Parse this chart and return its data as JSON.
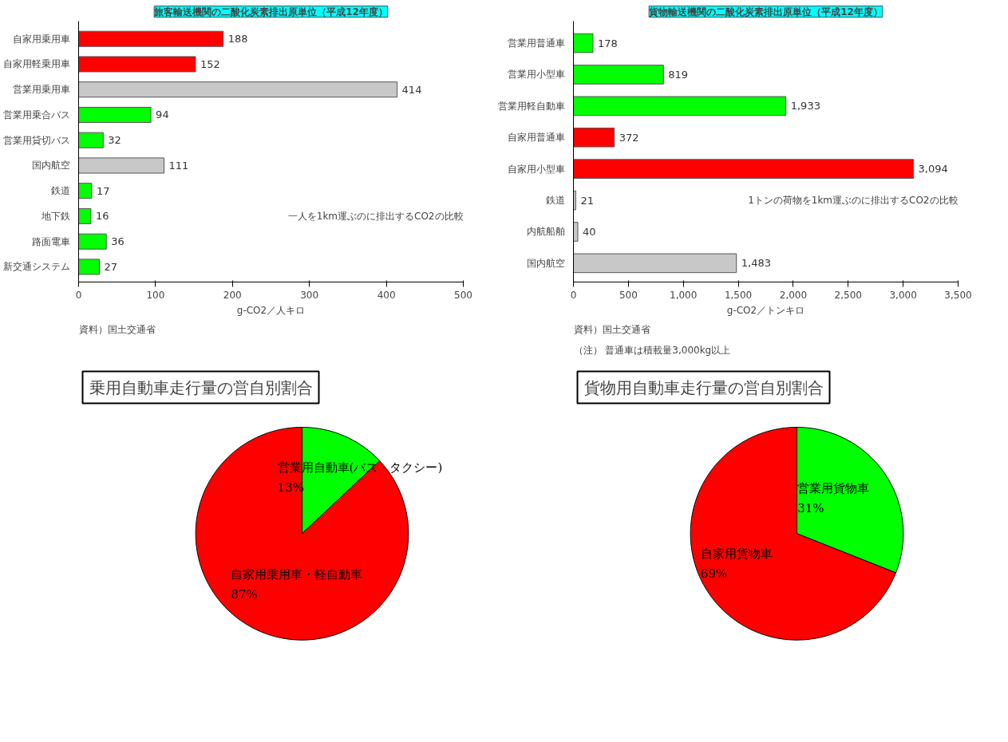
{
  "chart_data": [
    {
      "type": "bar",
      "orientation": "horizontal",
      "title": "旅客輸送機関の二酸化炭素排出原単位（平成12年度）",
      "xlabel": "g-CO2／人キロ",
      "categories": [
        "自家用乗用車",
        "自家用軽乗用車",
        "営業用乗用車",
        "営業用乗合バス",
        "営業用貸切バス",
        "国内航空",
        "鉄道",
        "地下鉄",
        "路面電車",
        "新交通システム"
      ],
      "values": [
        188,
        152,
        414,
        94,
        32,
        111,
        17,
        16,
        36,
        27
      ],
      "colors": [
        "#ff0000",
        "#ff0000",
        "#c8c8c8",
        "#00ff00",
        "#00ff00",
        "#c8c8c8",
        "#00ff00",
        "#00ff00",
        "#00ff00",
        "#00ff00"
      ],
      "xlim": [
        0,
        500
      ],
      "xticks": [
        0,
        100,
        200,
        300,
        400,
        500
      ],
      "data_labels": true,
      "annotations": [
        "一人を1km運ぶのに排出するCO2の比較",
        "資料）国土交通省"
      ]
    },
    {
      "type": "bar",
      "orientation": "horizontal",
      "title": "貨物輸送機関の二酸化炭素排出原単位（平成12年度）",
      "xlabel": "g-CO2／トンキロ",
      "categories": [
        "営業用普通車",
        "営業用小型車",
        "営業用軽自動車",
        "自家用普通車",
        "自家用小型車",
        "鉄道",
        "内航船舶",
        "国内航空"
      ],
      "values": [
        178,
        819,
        1933,
        372,
        3094,
        21,
        40,
        1483
      ],
      "value_labels": [
        "178",
        "819",
        "1,933",
        "372",
        "3,094",
        "21",
        "40",
        "1,483"
      ],
      "colors": [
        "#00ff00",
        "#00ff00",
        "#00ff00",
        "#ff0000",
        "#ff0000",
        "#c8c8c8",
        "#c8c8c8",
        "#c8c8c8"
      ],
      "xlim": [
        0,
        3500
      ],
      "xticks": [
        0,
        500,
        {
          "value": 1000,
          "label": "1,000"
        },
        {
          "value": 1500,
          "label": "1,500"
        },
        {
          "value": 2000,
          "label": "2,000"
        },
        {
          "value": 2500,
          "label": "2,500"
        },
        {
          "value": 3000,
          "label": "3,000"
        },
        {
          "value": 3500,
          "label": "3,500"
        }
      ],
      "annotations": [
        "1トンの荷物を1km運ぶのに排出するCO2の比較",
        "（注） 普通車は積載量3,000kg以上",
        "資料）国土交通省"
      ]
    },
    {
      "type": "pie",
      "title": "乗用自動車走行量の営自別割合",
      "categories": [
        "営業用自動車(バス・タクシー)",
        "自家用乗用車・軽自動車"
      ],
      "values": [
        13,
        87
      ],
      "value_labels": [
        "13%",
        "87%"
      ],
      "colors": [
        "#00ff00",
        "#ff0000"
      ]
    },
    {
      "type": "pie",
      "title": "貨物用自動車走行量の営自別割合",
      "categories": [
        "営業用貨物車",
        "自家用貨物車"
      ],
      "values": [
        31,
        69
      ],
      "value_labels": [
        "31%",
        "69%"
      ],
      "colors": [
        "#00ff00",
        "#ff0000"
      ]
    }
  ]
}
